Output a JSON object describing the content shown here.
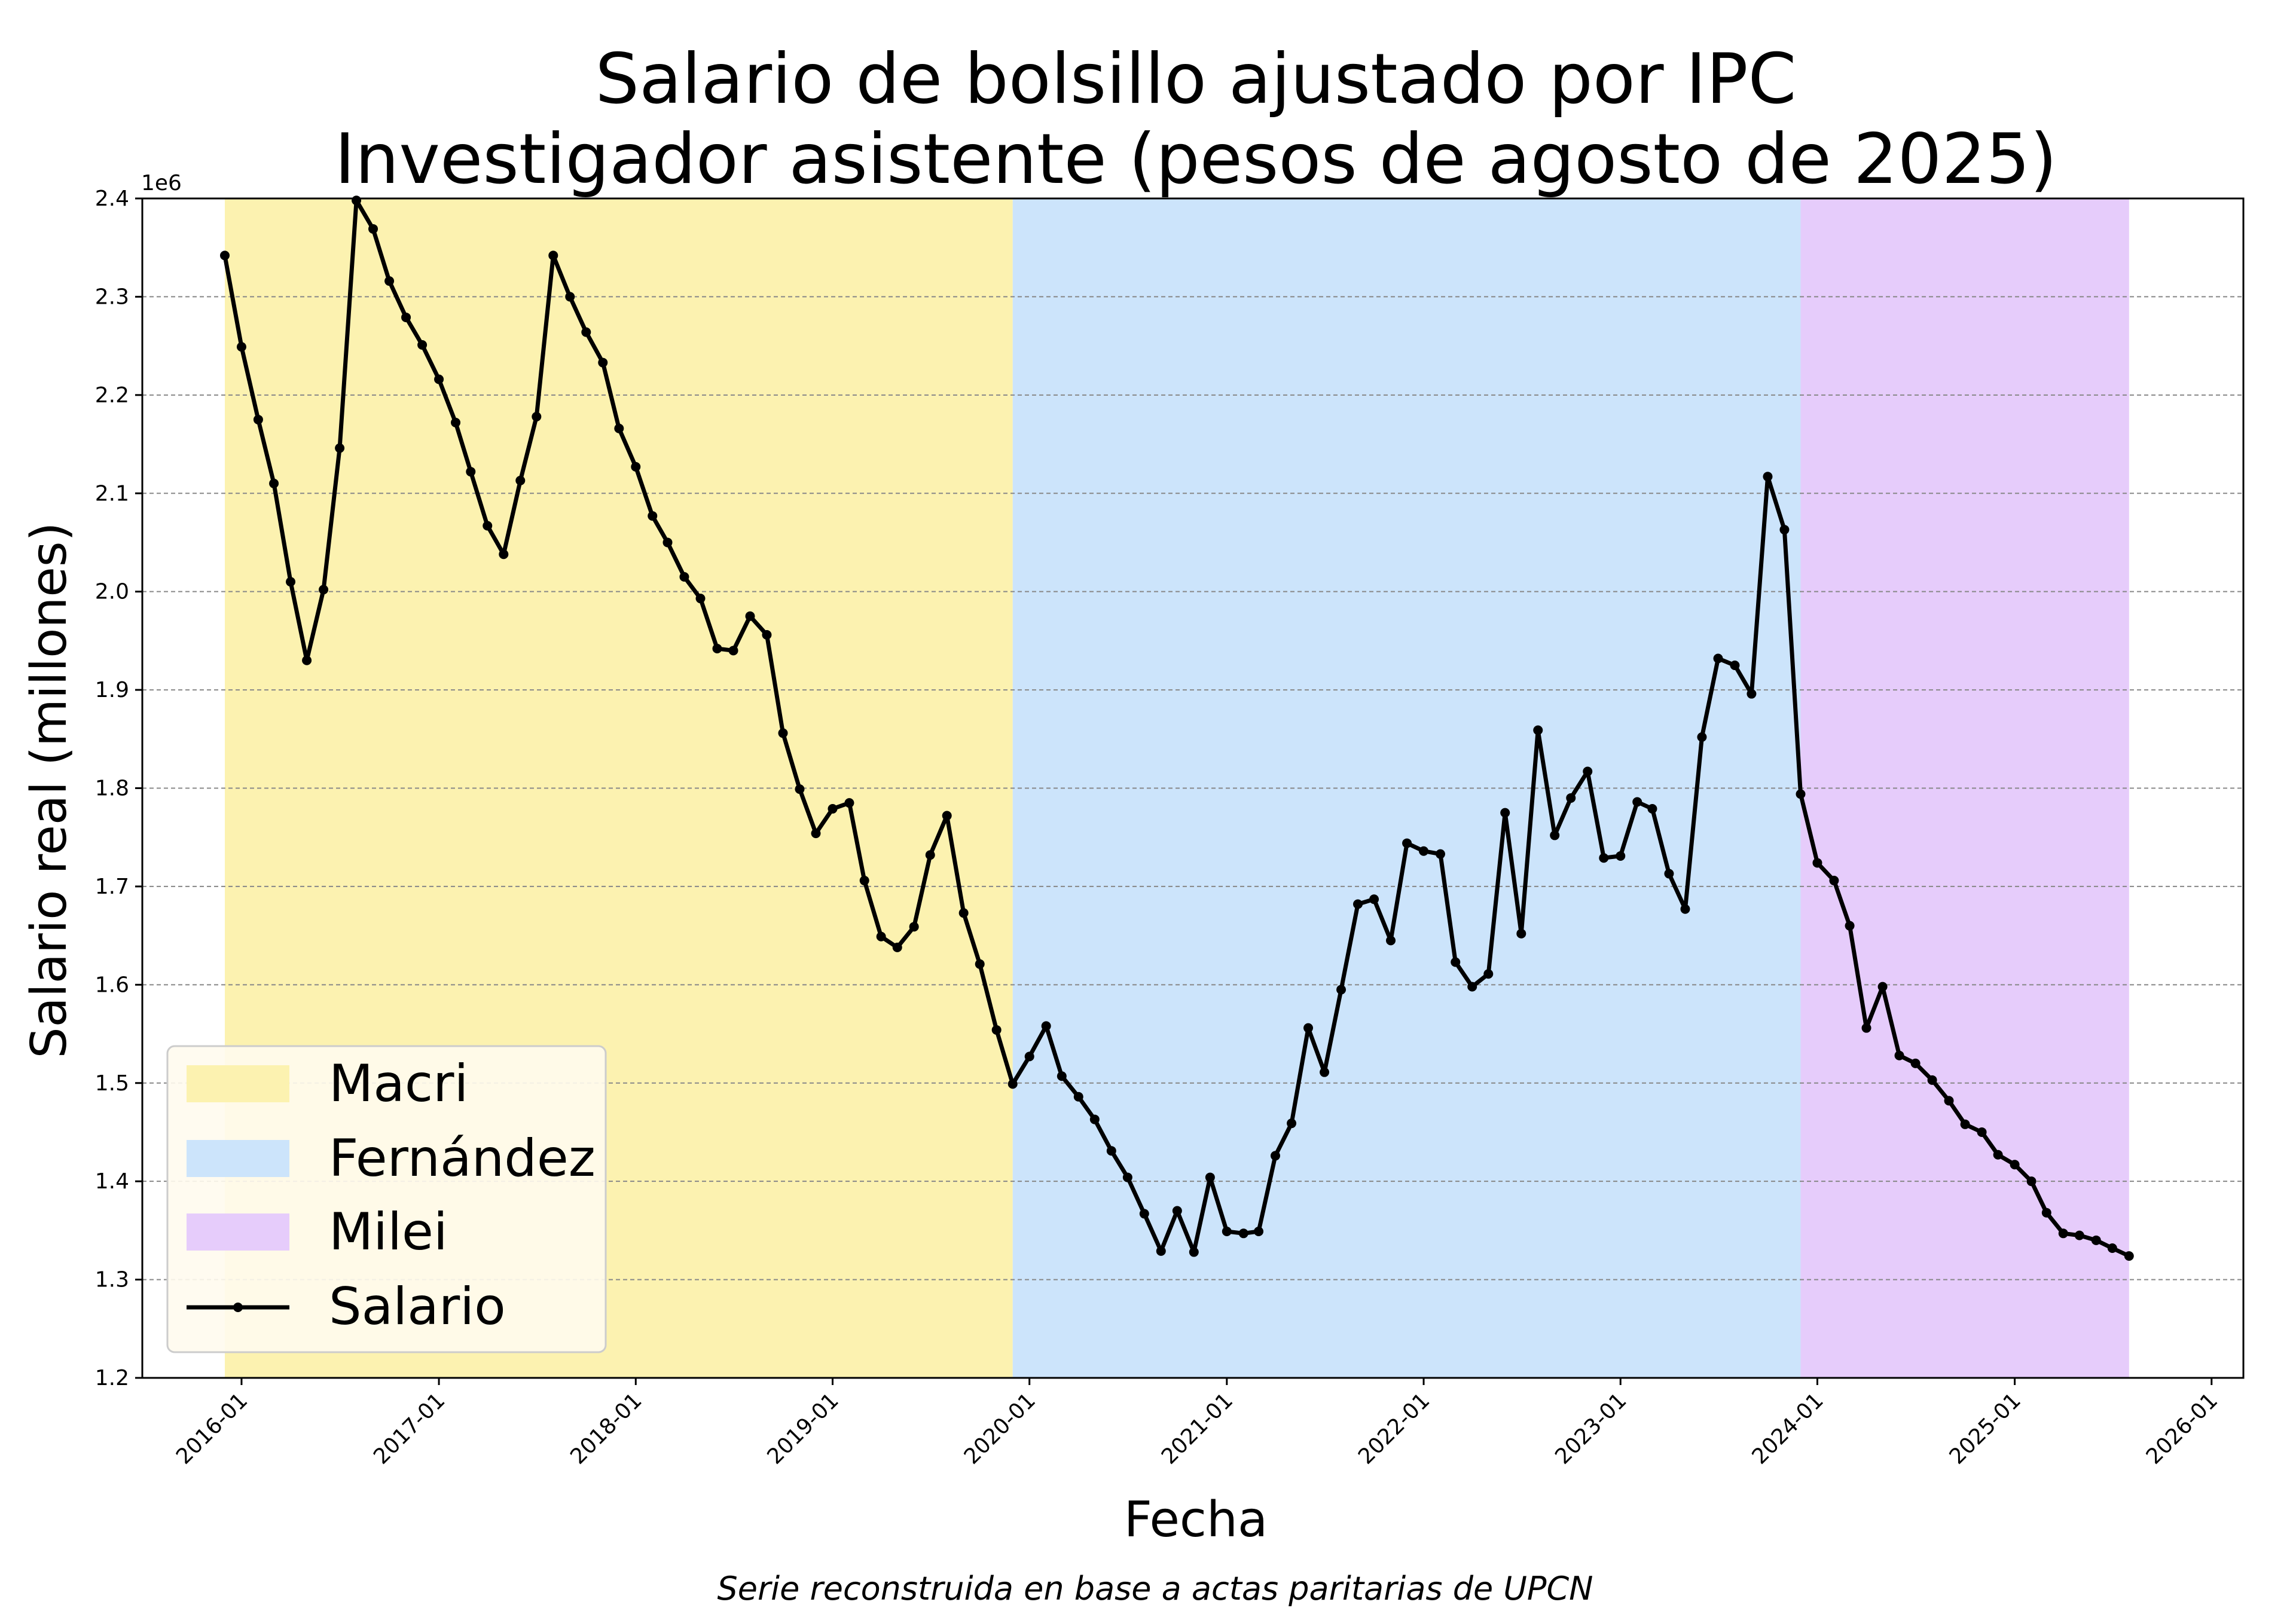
{
  "chart_data": {
    "type": "line",
    "title": [
      "Salario de bolsillo ajustado por IPC",
      "Investigador asistente (pesos de agosto de 2025)"
    ],
    "xlabel": "Fecha",
    "ylabel": "Salario real (millones)",
    "y_offset_label": "1e6",
    "caption": "Serie reconstruida en base a actas paritarias de UPCN",
    "x_range": [
      "2015-07-01",
      "2026-03-01"
    ],
    "ylim": [
      1200000,
      2400000
    ],
    "grid": "horizontal dashed",
    "legend_position": "lower left",
    "x_ticks": [
      "2016-01",
      "2017-01",
      "2018-01",
      "2019-01",
      "2020-01",
      "2021-01",
      "2022-01",
      "2023-01",
      "2024-01",
      "2025-01",
      "2026-01"
    ],
    "y_ticks": [
      "1.2",
      "1.3",
      "1.4",
      "1.5",
      "1.6",
      "1.7",
      "1.8",
      "1.9",
      "2.0",
      "2.1",
      "2.2",
      "2.3",
      "2.4"
    ],
    "periods": [
      {
        "name": "Macri",
        "start": "2015-12",
        "end": "2019-12",
        "color": "#fcf2b0"
      },
      {
        "name": "Fernández",
        "start": "2019-12",
        "end": "2023-12",
        "color": "#cce4fb"
      },
      {
        "name": "Milei",
        "start": "2023-12",
        "end": "2025-08",
        "color": "#e6ccfb"
      }
    ],
    "series": [
      {
        "name": "Salario",
        "color": "#000000",
        "x": [
          "2015-12",
          "2016-01",
          "2016-02",
          "2016-03",
          "2016-04",
          "2016-05",
          "2016-06",
          "2016-07",
          "2016-08",
          "2016-09",
          "2016-10",
          "2016-11",
          "2016-12",
          "2017-01",
          "2017-02",
          "2017-03",
          "2017-04",
          "2017-05",
          "2017-06",
          "2017-07",
          "2017-08",
          "2017-09",
          "2017-10",
          "2017-11",
          "2017-12",
          "2018-01",
          "2018-02",
          "2018-03",
          "2018-04",
          "2018-05",
          "2018-06",
          "2018-07",
          "2018-08",
          "2018-09",
          "2018-10",
          "2018-11",
          "2018-12",
          "2019-01",
          "2019-02",
          "2019-03",
          "2019-04",
          "2019-05",
          "2019-06",
          "2019-07",
          "2019-08",
          "2019-09",
          "2019-10",
          "2019-11",
          "2019-12",
          "2020-01",
          "2020-02",
          "2020-03",
          "2020-04",
          "2020-05",
          "2020-06",
          "2020-07",
          "2020-08",
          "2020-09",
          "2020-10",
          "2020-11",
          "2020-12",
          "2021-01",
          "2021-02",
          "2021-03",
          "2021-04",
          "2021-05",
          "2021-06",
          "2021-07",
          "2021-08",
          "2021-09",
          "2021-10",
          "2021-11",
          "2021-12",
          "2022-01",
          "2022-02",
          "2022-03",
          "2022-04",
          "2022-05",
          "2022-06",
          "2022-07",
          "2022-08",
          "2022-09",
          "2022-10",
          "2022-11",
          "2022-12",
          "2023-01",
          "2023-02",
          "2023-03",
          "2023-04",
          "2023-05",
          "2023-06",
          "2023-07",
          "2023-08",
          "2023-09",
          "2023-10",
          "2023-11",
          "2023-12",
          "2024-01",
          "2024-02",
          "2024-03",
          "2024-04",
          "2024-05",
          "2024-06",
          "2024-07",
          "2024-08",
          "2024-09",
          "2024-10",
          "2024-11",
          "2024-12",
          "2025-01",
          "2025-02",
          "2025-03",
          "2025-04",
          "2025-05",
          "2025-06",
          "2025-07",
          "2025-08"
        ],
        "y": [
          2342000,
          2249000,
          2175000,
          2110000,
          2010000,
          1930000,
          2002000,
          2146000,
          2398000,
          2369000,
          2316000,
          2279000,
          2251000,
          2216000,
          2172000,
          2122000,
          2067000,
          2038000,
          2113000,
          2178000,
          2342000,
          2300000,
          2264000,
          2233000,
          2166000,
          2127000,
          2077000,
          2050000,
          2015000,
          1993000,
          1942000,
          1940000,
          1975000,
          1956000,
          1856000,
          1799000,
          1754000,
          1779000,
          1785000,
          1706000,
          1649000,
          1638000,
          1659000,
          1732000,
          1772000,
          1673000,
          1621000,
          1554000,
          1499000,
          1527000,
          1558000,
          1507000,
          1486000,
          1463000,
          1431000,
          1404000,
          1367000,
          1329000,
          1370000,
          1328000,
          1404000,
          1349000,
          1347000,
          1349000,
          1426000,
          1459000,
          1556000,
          1511000,
          1595000,
          1682000,
          1687000,
          1645000,
          1744000,
          1736000,
          1733000,
          1623000,
          1598000,
          1611000,
          1775000,
          1652000,
          1859000,
          1752000,
          1790000,
          1817000,
          1729000,
          1731000,
          1786000,
          1779000,
          1713000,
          1677000,
          1852000,
          1932000,
          1925000,
          1896000,
          2117000,
          2063000,
          1794000,
          1724000,
          1706000,
          1660000,
          1556000,
          1598000,
          1528000,
          1520000,
          1503000,
          1482000,
          1458000,
          1450000,
          1427000,
          1417000,
          1400000,
          1368000,
          1347000,
          1345000,
          1340000,
          1332000,
          1324000
        ]
      }
    ]
  }
}
